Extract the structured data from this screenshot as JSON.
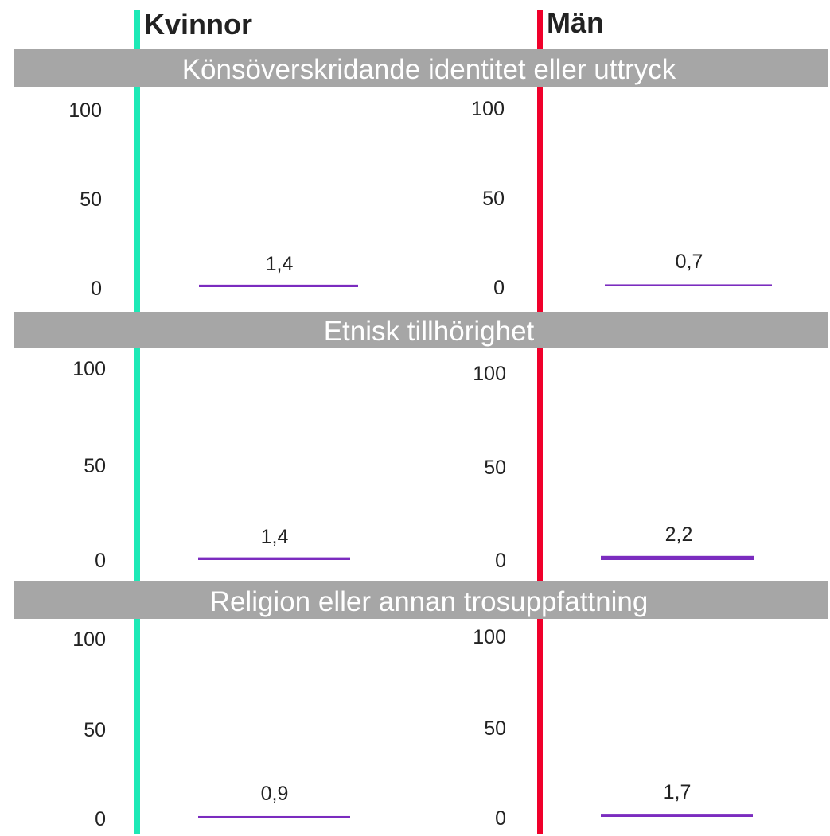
{
  "chart_data": {
    "type": "bar",
    "columns": [
      {
        "label": "Kvinnor",
        "color": "#1de9b6"
      },
      {
        "label": "Män",
        "color": "#f0002a"
      }
    ],
    "panels": [
      {
        "title": "Könsöverskridande identitet eller uttryck",
        "values": [
          1.4,
          0.7
        ],
        "labels": [
          "1,4",
          "0,7"
        ]
      },
      {
        "title": "Etnisk tillhörighet",
        "values": [
          1.4,
          2.2
        ],
        "labels": [
          "1,4",
          "2,2"
        ]
      },
      {
        "title": "Religion eller annan trosuppfattning",
        "values": [
          0.9,
          1.7
        ],
        "labels": [
          "0,9",
          "1,7"
        ]
      }
    ],
    "yticks": [
      "0",
      "50",
      "100"
    ],
    "ylim": [
      0,
      100
    ],
    "bar_color": "#7b2cbf",
    "panel_bg_color": "#a6a6a6"
  }
}
